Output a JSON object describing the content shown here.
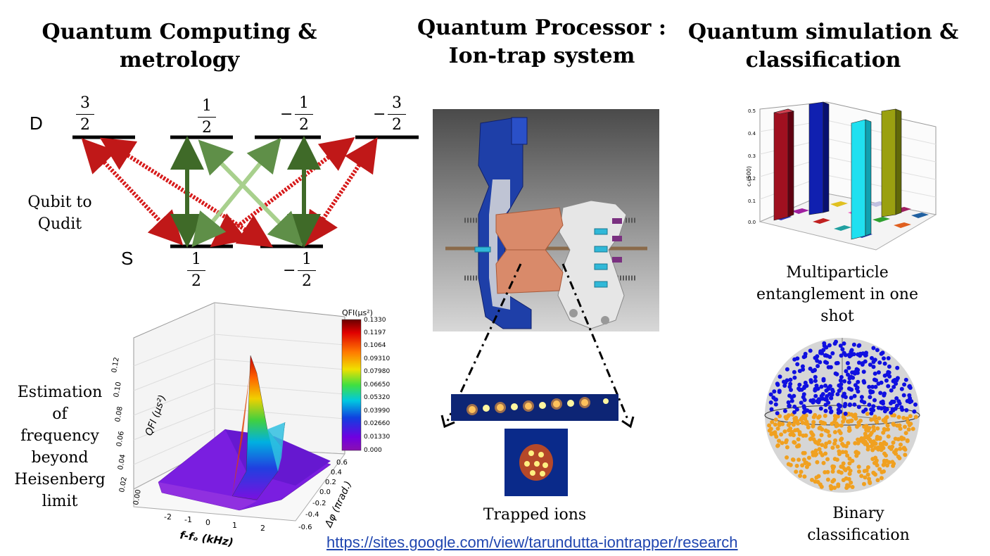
{
  "titles": {
    "left_line1": "Quantum Computing  &",
    "left_line2": "metrology",
    "center_line1": "Quantum Processor :",
    "center_line2": "Ion-trap system",
    "right_line1": "Quantum simulation &",
    "right_line2": "classification"
  },
  "levels": {
    "d_label": "D",
    "s_label": "S",
    "d_states": [
      {
        "sign": "",
        "num": "3",
        "den": "2"
      },
      {
        "sign": "",
        "num": "1",
        "den": "2"
      },
      {
        "sign": "−",
        "num": "1",
        "den": "2"
      },
      {
        "sign": "−",
        "num": "3",
        "den": "2"
      }
    ],
    "s_states": [
      {
        "sign": "",
        "num": "1",
        "den": "2"
      },
      {
        "sign": "−",
        "num": "1",
        "den": "2"
      }
    ],
    "qudit_label_line1": "Qubit to",
    "qudit_label_line2": "Qudit"
  },
  "qfi_plot": {
    "caption_lines": [
      "Estimation",
      "of",
      "frequency",
      "beyond",
      "Heisenberg",
      "limit"
    ],
    "colorbar_title": "QFI(μs²)",
    "colorbar_ticks": [
      "0.1330",
      "0.1197",
      "0.1064",
      "0.09310",
      "0.07980",
      "0.06650",
      "0.05320",
      "0.03990",
      "0.02660",
      "0.01330",
      "0.000"
    ],
    "z_axis_label": "QFI (μs²)",
    "z_ticks": [
      "0.12",
      "0.10",
      "0.08",
      "0.06",
      "0.04",
      "0.02",
      "0.00"
    ],
    "x_axis_label": "f-fₒ (kHz)",
    "x_ticks": [
      "-2",
      "-1",
      "0",
      "1",
      "2"
    ],
    "y_axis_label": "Δφ (πrad.)",
    "y_ticks": [
      "0.6",
      "0.4",
      "0.2",
      "0.0",
      "-0.2",
      "-0.4",
      "-0.6"
    ]
  },
  "center": {
    "ions_caption": "Trapped ions"
  },
  "bar_plot": {
    "y_axis_label": "cₙ(500)",
    "y_ticks": [
      "0.5",
      "0.4",
      "0.3",
      "0.2",
      "0.1",
      "0.0"
    ],
    "caption_line1": "Multiparticle",
    "caption_line2": "entanglement in one",
    "caption_line3": "shot"
  },
  "sphere": {
    "caption_line1": "Binary",
    "caption_line2": "classification"
  },
  "footer": {
    "url": "https://sites.google.com/view/tarundutta-iontrapper/research"
  },
  "colors": {
    "red_arrow": "#d61a1a",
    "green_arrow": "#5a8a3a",
    "light_green_arrow": "#a8d08d",
    "trap_blue": "#1e3fa8",
    "electrode_copper": "#d98a6a",
    "sphere_blue": "#1010e0",
    "sphere_orange": "#f0a020",
    "link": "#2046b0"
  }
}
